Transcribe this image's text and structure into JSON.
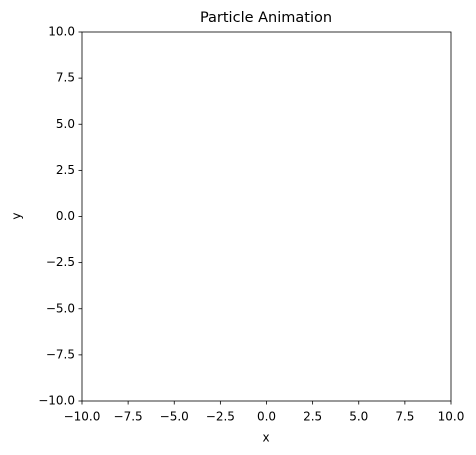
{
  "chart_data": {
    "type": "scatter",
    "title": "Particle Animation",
    "x_label": "x",
    "y_label": "y",
    "xlim": [
      -10,
      10
    ],
    "ylim": [
      -10,
      10
    ],
    "xticks": [
      {
        "value": -10,
        "label": "−10.0"
      },
      {
        "value": -7.5,
        "label": "−7.5"
      },
      {
        "value": -5,
        "label": "−5.0"
      },
      {
        "value": -2.5,
        "label": "−2.5"
      },
      {
        "value": 0,
        "label": "0.0"
      },
      2.5,
      {
        "value": 5,
        "label": "5.0"
      },
      7.5,
      {
        "value": 10,
        "label": "10.0"
      }
    ],
    "yticks": [
      {
        "value": -10,
        "label": "−10.0"
      },
      {
        "value": -7.5,
        "label": "−7.5"
      },
      {
        "value": -5,
        "label": "−5.0"
      },
      {
        "value": -2.5,
        "label": "−2.5"
      },
      {
        "value": 0,
        "label": "0.0"
      },
      2.5,
      {
        "value": 5,
        "label": "5.0"
      },
      7.5,
      {
        "value": 10,
        "label": "10.0"
      }
    ],
    "grid": false
  }
}
